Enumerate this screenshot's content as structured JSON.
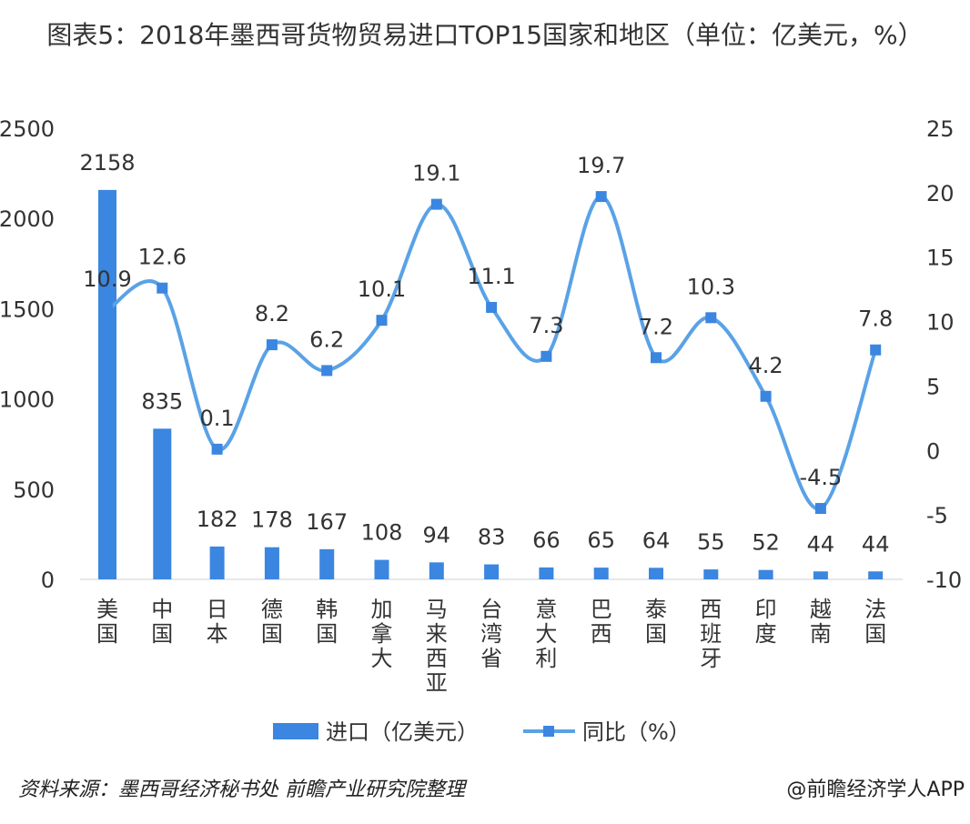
{
  "chart_data": {
    "type": "bar+line",
    "title": "图表5：2018年墨西哥货物贸易进口TOP15国家和地区（单位：亿美元，%）",
    "categories": [
      "美国",
      "中国",
      "日本",
      "德国",
      "韩国",
      "加拿大",
      "马来西亚",
      "台湾省",
      "意大利",
      "巴西",
      "泰国",
      "西班牙",
      "印度",
      "越南",
      "法国"
    ],
    "series": [
      {
        "name": "进口（亿美元）",
        "type": "bar",
        "axis": "left",
        "color": "#3a86e0",
        "values": [
          2158,
          835,
          182,
          178,
          167,
          108,
          94,
          83,
          66,
          65,
          64,
          55,
          52,
          44,
          44
        ]
      },
      {
        "name": "同比（%）",
        "type": "line",
        "axis": "right",
        "color": "#5aa2e6",
        "values": [
          10.9,
          12.6,
          0.1,
          8.2,
          6.2,
          10.1,
          19.1,
          11.1,
          7.3,
          19.7,
          7.2,
          10.3,
          4.2,
          -4.5,
          7.8
        ]
      }
    ],
    "y_left": {
      "range": [
        0,
        2500
      ],
      "ticks": [
        0,
        500,
        1000,
        1500,
        2000,
        2500
      ]
    },
    "y_right": {
      "range": [
        -10,
        25
      ],
      "ticks": [
        -10,
        -5,
        0,
        5,
        10,
        15,
        20,
        25
      ]
    },
    "grid": false,
    "legend_position": "bottom"
  },
  "footer": {
    "source": "资料来源：墨西哥经济秘书处 前瞻产业研究院整理",
    "brand": "@前瞻经济学人APP"
  }
}
